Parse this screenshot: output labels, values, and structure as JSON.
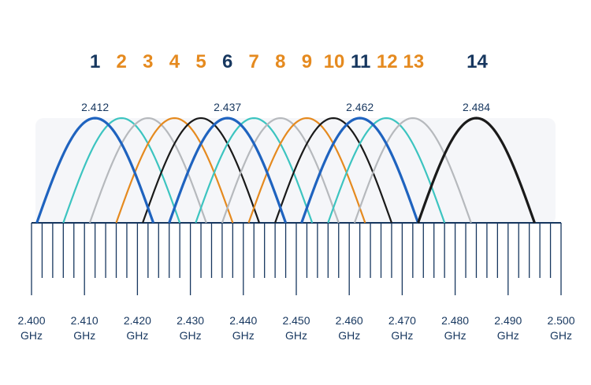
{
  "colors": {
    "dark": "#17375f",
    "orange": "#e58a1f",
    "blue": "#1f63bf",
    "teal": "#3cc4c0",
    "gray": "#b6b9bd",
    "black": "#1a1a1a"
  },
  "channels": [
    {
      "label": "1",
      "color": "dark"
    },
    {
      "label": "2",
      "color": "orange"
    },
    {
      "label": "3",
      "color": "orange"
    },
    {
      "label": "4",
      "color": "orange"
    },
    {
      "label": "5",
      "color": "orange"
    },
    {
      "label": "6",
      "color": "dark"
    },
    {
      "label": "7",
      "color": "orange"
    },
    {
      "label": "8",
      "color": "orange"
    },
    {
      "label": "9",
      "color": "orange"
    },
    {
      "label": "10",
      "color": "orange"
    },
    {
      "label": "11",
      "color": "dark"
    },
    {
      "label": "12",
      "color": "orange"
    },
    {
      "label": "13",
      "color": "orange"
    },
    {
      "label": "14",
      "color": "dark"
    }
  ],
  "peak_labels": [
    "2.412",
    "2.437",
    "2.462",
    "2.484"
  ],
  "axis": {
    "ticks": [
      "2.400",
      "2.410",
      "2.420",
      "2.430",
      "2.440",
      "2.450",
      "2.460",
      "2.470",
      "2.480",
      "2.490",
      "2.500"
    ],
    "unit": "GHz"
  },
  "chart_data": {
    "type": "line",
    "x_range": [
      2.4,
      2.5
    ],
    "channel_centers_ghz": [
      2.412,
      2.417,
      2.422,
      2.427,
      2.432,
      2.437,
      2.442,
      2.447,
      2.452,
      2.457,
      2.462,
      2.467,
      2.472,
      2.484
    ],
    "channel_width_ghz": 0.022,
    "curve_colors": [
      "blue",
      "teal",
      "gray",
      "orange",
      "black",
      "blue",
      "teal",
      "gray",
      "orange",
      "black",
      "blue",
      "teal",
      "gray",
      "black"
    ],
    "bold_channels": [
      1,
      6,
      11,
      14
    ]
  }
}
